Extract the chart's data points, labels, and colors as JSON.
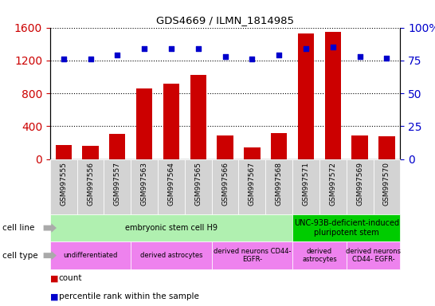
{
  "title": "GDS4669 / ILMN_1814985",
  "samples": [
    "GSM997555",
    "GSM997556",
    "GSM997557",
    "GSM997563",
    "GSM997564",
    "GSM997565",
    "GSM997566",
    "GSM997567",
    "GSM997568",
    "GSM997571",
    "GSM997572",
    "GSM997569",
    "GSM997570"
  ],
  "counts": [
    170,
    165,
    310,
    860,
    920,
    1020,
    290,
    145,
    315,
    1530,
    1550,
    285,
    275
  ],
  "percentiles": [
    76,
    76,
    79,
    84,
    84,
    84,
    78,
    76,
    79,
    84,
    85,
    78,
    77
  ],
  "left_ylim": [
    0,
    1600
  ],
  "left_yticks": [
    0,
    400,
    800,
    1200,
    1600
  ],
  "right_ylim": [
    0,
    100
  ],
  "right_yticks": [
    0,
    25,
    50,
    75,
    100
  ],
  "bar_color": "#cc0000",
  "dot_color": "#0000cc",
  "sample_bg_color": "#d3d3d3",
  "cell_line_groups": [
    {
      "label": "embryonic stem cell H9",
      "start": 0,
      "end": 9,
      "color": "#b0f0b0"
    },
    {
      "label": "UNC-93B-deficient-induced\npluripotent stem",
      "start": 9,
      "end": 13,
      "color": "#00cc00"
    }
  ],
  "cell_type_groups": [
    {
      "label": "undifferentiated",
      "start": 0,
      "end": 3,
      "color": "#ee82ee"
    },
    {
      "label": "derived astrocytes",
      "start": 3,
      "end": 6,
      "color": "#ee82ee"
    },
    {
      "label": "derived neurons CD44-\nEGFR-",
      "start": 6,
      "end": 9,
      "color": "#ee82ee"
    },
    {
      "label": "derived\nastrocytes",
      "start": 9,
      "end": 11,
      "color": "#ee82ee"
    },
    {
      "label": "derived neurons\nCD44- EGFR-",
      "start": 11,
      "end": 13,
      "color": "#ee82ee"
    }
  ],
  "tick_label_color_left": "#cc0000",
  "tick_label_color_right": "#0000cc",
  "legend_count_color": "#cc0000",
  "legend_dot_color": "#0000cc",
  "cell_line_label": "cell line",
  "cell_type_label": "cell type",
  "legend_count_text": "count",
  "legend_pct_text": "percentile rank within the sample"
}
